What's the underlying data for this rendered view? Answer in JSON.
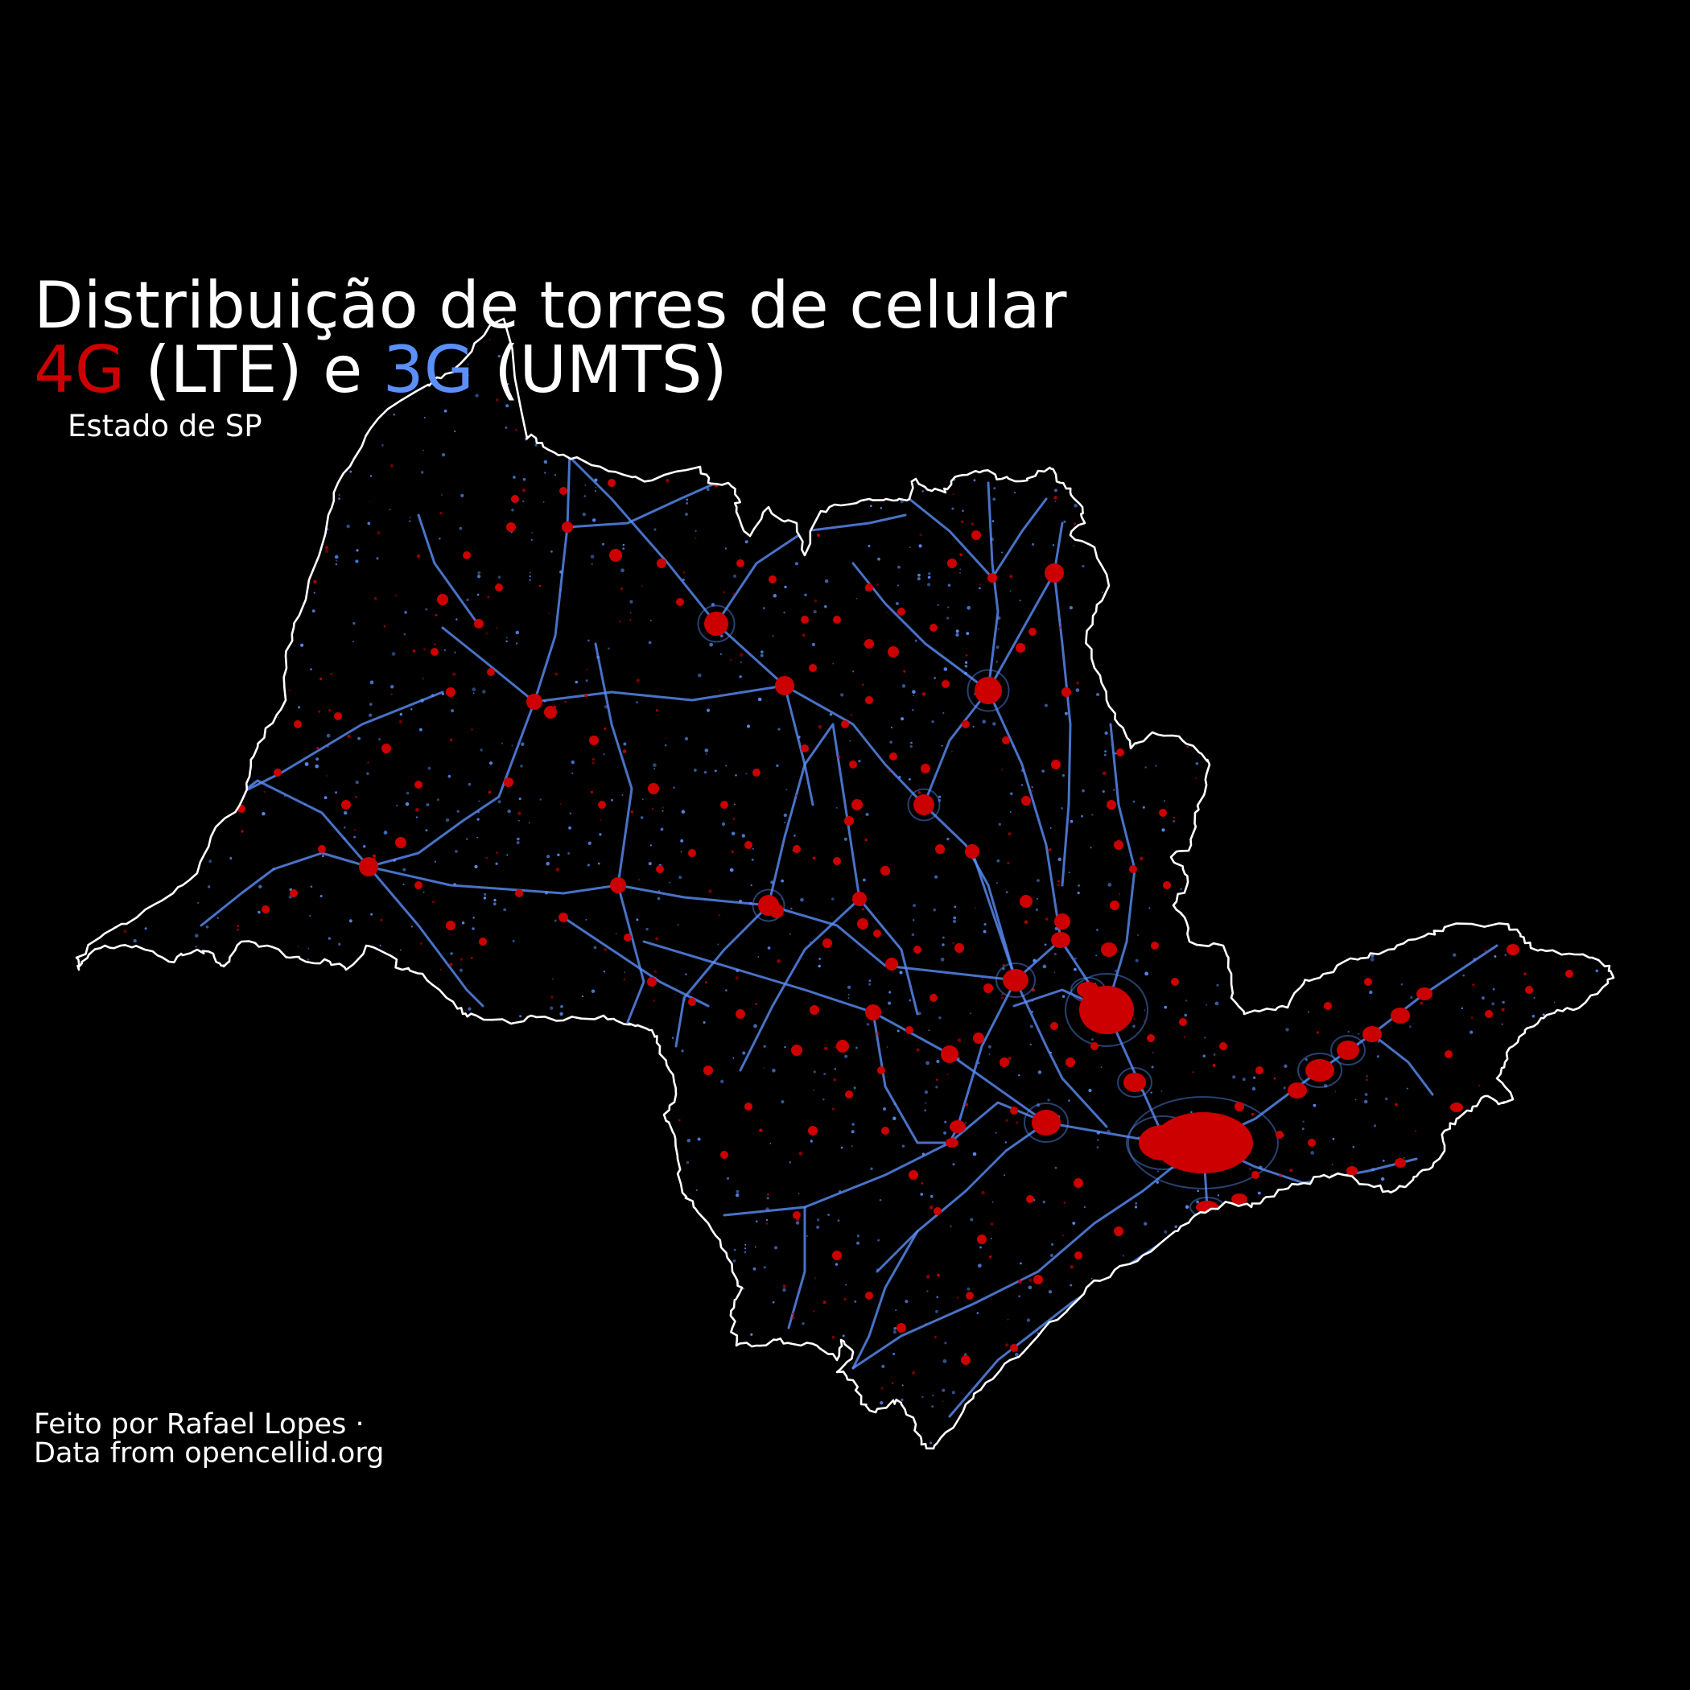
{
  "title": {
    "line1": "Distribuição de torres de celular",
    "tag_4g": "4G",
    "tag_lte": " (LTE) e ",
    "tag_3g": "3G",
    "tag_umts": " (UMTS)"
  },
  "subtitle": "Estado de SP",
  "credits": {
    "line1": "Feito por Rafael Lopes ·",
    "line2": "Data from opencellid.org"
  },
  "colors": {
    "background": "#000000",
    "lte_4g": "#CC0000",
    "umts_3g": "#5B8FF9",
    "border": "#FFFFFF"
  }
}
